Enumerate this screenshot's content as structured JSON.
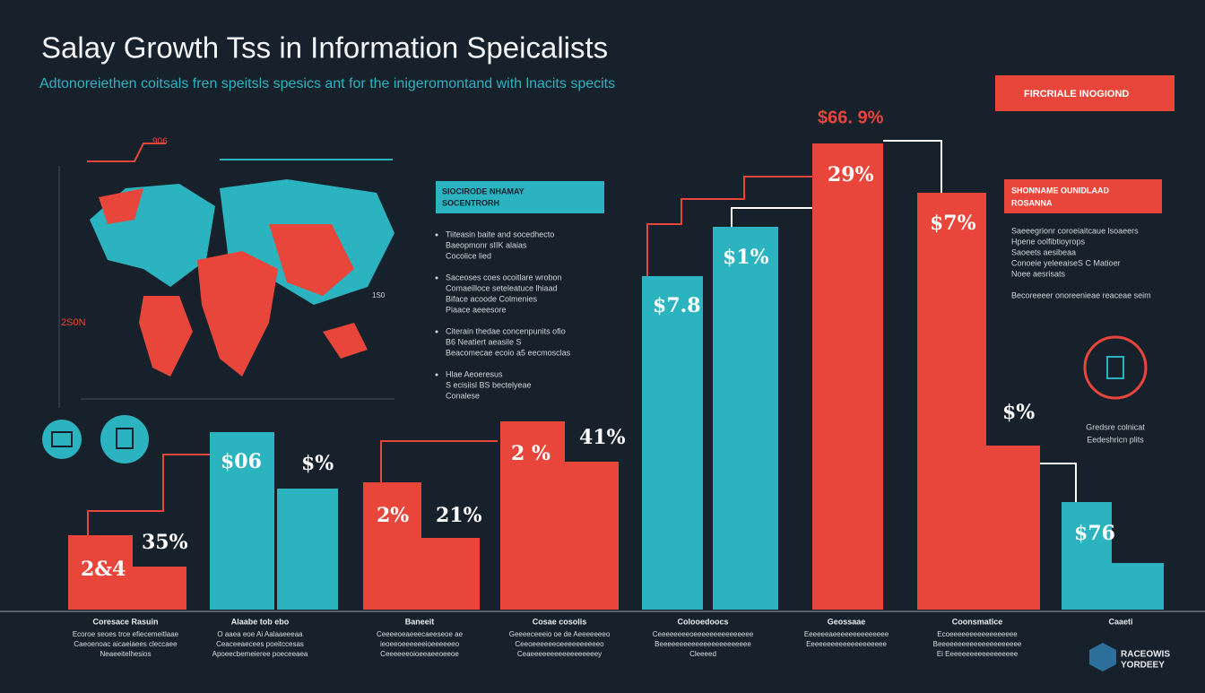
{
  "title": "Salay Growth Tss in Information Speicalists",
  "subtitle": "Adtonoreiethen coitsals fren speitsls spesics ant for the inigeromontand with lnacits specits",
  "badge": "FIRCRIALE INOGIOND",
  "peak_label": "$66. 9%",
  "map_labels": [
    "906",
    "2S0N",
    "1S0"
  ],
  "info_box": {
    "heading": [
      "SIOCIRODE NHAMAY",
      "SOCENTRORH"
    ],
    "bullets": [
      [
        "Tiiteasin baite and socedhecto",
        "Baeopmonr sIIK alaias",
        "Cocolice lied"
      ],
      [
        "Saceoses coes ocoitlare wrobon",
        "Comaeilloce seteleatuce lhiaad",
        "Biface acoode Colmenies",
        "Piaace aeeesore"
      ],
      [
        "Citerain thedae concenpunits ofio",
        "B6 Neatiert aeasile S",
        "Beacomecae ecoio a5 eecmosclas"
      ],
      [
        "Hlae Aeoeresus",
        "S ecisiisl BS bectelyeae",
        "Conalese"
      ]
    ]
  },
  "side_box": {
    "heading": [
      "SHONNAME OUNIDLAAD",
      "ROSANNA"
    ],
    "lines": [
      "Saeeegrionr coroeiaitcaue lsoaeers",
      "Hpene oolfibtioyrops",
      "Saoeets aesibeaa",
      "Conoeie yeleeaiseS C Matioer",
      "Noee aesrisats",
      "Becoreeeer onoreenieae reaceae seim"
    ]
  },
  "icon_caption": [
    "Gredsre colnicat",
    "Eedeshricn plits"
  ],
  "bar_labels": [
    "2&4",
    "35%",
    "$06",
    "$%",
    "2%",
    "21%",
    "2 %",
    "41%",
    "$7.8",
    "$1%",
    "29%",
    "$7%",
    "$%",
    "$76"
  ],
  "captions": [
    {
      "title": "Coresace Rasuin",
      "lines": [
        "Ecoroe seoes trce efiecemeitlaae",
        "Caeoenoac aicaeiaees cleccaee",
        "Neaeeitelhesios"
      ]
    },
    {
      "title": "Alaabe tob ebo",
      "lines": [
        "O aaea eoe Ai Aalaaeeeaa",
        "Ceaceeaecees poeitccesas",
        "Apoeecbemeieree poeceeaea"
      ]
    },
    {
      "title": "Baneeit",
      "lines": [
        "Ceeeeoeaeeecaeeseoe ae",
        "ieoeeoeeeeeeioeeeeeeo",
        "Ceeeeeeoioeeaeeoeeoe"
      ]
    },
    {
      "title": "Cosae cosolis",
      "lines": [
        "Geeeeceeeio oe de Aeeeeeeeo",
        "Ceeoeeeeeeoeeeeeeeeeeo",
        "Ceaeeeeeeeeeeeeeeeeey"
      ]
    },
    {
      "title": "Colooedoocs",
      "lines": [
        "Ceeeeeeeeoeeeeeeeeeeeeeee",
        "Beeeeeeeeeeeeeeeeeeeeeee",
        "Cleeeed"
      ]
    },
    {
      "title": "Geossaae",
      "lines": [
        "Eeeeeeaeeeeeeeeeeeeee",
        "Eeeeeeeeeeeeeeeeeeee"
      ]
    },
    {
      "title": "Coonsmatice",
      "lines": [
        "Ecoeeeeeeeeeeeeeeeee",
        "Beeeeeeeeeeeeeeeeeeeee",
        "Ei Eeeeeeeeeeeeeeeeee"
      ]
    },
    {
      "title": "Caaeti",
      "lines": []
    }
  ],
  "footer_logo": [
    "RACEOWIS",
    "YORDEEY"
  ]
}
